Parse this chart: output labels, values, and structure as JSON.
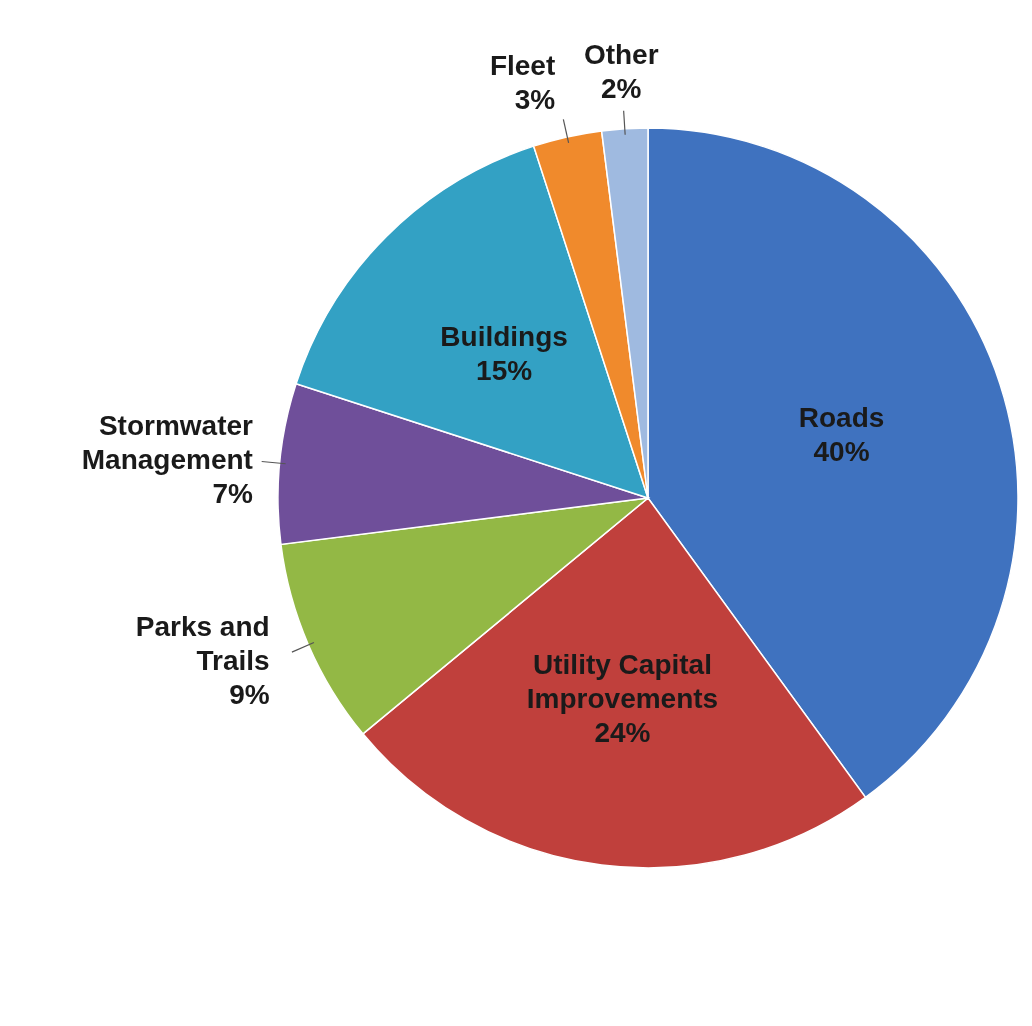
{
  "chart_data": {
    "type": "pie",
    "categories": [
      "Roads",
      "Utility Capital Improvements",
      "Parks and Trails",
      "Stormwater Management",
      "Buildings",
      "Fleet",
      "Other"
    ],
    "values": [
      40,
      24,
      9,
      7,
      15,
      3,
      2
    ],
    "value_labels": [
      "40%",
      "24%",
      "9%",
      "7%",
      "15%",
      "3%",
      "2%"
    ],
    "colors": [
      "#3f72bf",
      "#c0403c",
      "#93b845",
      "#6f4f9a",
      "#33a1c4",
      "#f08a2c",
      "#9fbae0"
    ]
  }
}
